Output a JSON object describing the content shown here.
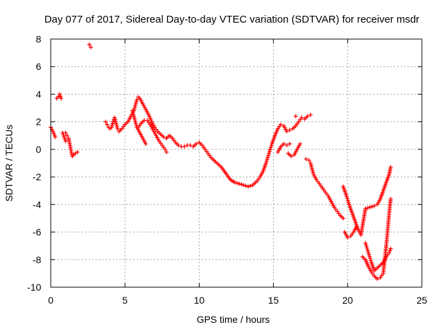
{
  "chart_data": {
    "type": "scatter",
    "title": "Day 077 of 2017, Sidereal Day-to-day VTEC variation (SDTVAR) for receiver msdr",
    "xlabel": "GPS time / hours",
    "ylabel": "SDTVAR / TECUs",
    "xlim": [
      0,
      25
    ],
    "ylim": [
      -10,
      8
    ],
    "xticks": [
      0,
      5,
      10,
      15,
      20,
      25
    ],
    "yticks": [
      -10,
      -8,
      -6,
      -4,
      -2,
      0,
      2,
      4,
      6,
      8
    ],
    "grid": true,
    "marker": "+",
    "series_color": "#ff0000",
    "series": [
      {
        "name": "upper-track",
        "points": [
          [
            0.0,
            1.6
          ],
          [
            0.15,
            1.3
          ],
          [
            0.3,
            0.9
          ],
          [
            0.4,
            3.7
          ],
          [
            0.5,
            3.8
          ],
          [
            0.6,
            4.0
          ],
          [
            0.7,
            3.7
          ],
          [
            0.8,
            1.2
          ],
          [
            0.9,
            0.9
          ],
          [
            1.0,
            0.6
          ],
          [
            1.0,
            1.2
          ],
          [
            1.1,
            1.0
          ],
          [
            1.2,
            0.8
          ],
          [
            1.45,
            -0.5
          ],
          [
            1.55,
            -0.4
          ],
          [
            1.65,
            -0.3
          ],
          [
            1.8,
            -0.2
          ],
          [
            2.6,
            7.6
          ],
          [
            2.7,
            7.4
          ],
          [
            3.7,
            2.0
          ],
          [
            3.8,
            1.8
          ],
          [
            3.9,
            1.6
          ],
          [
            4.0,
            1.5
          ],
          [
            4.1,
            1.6
          ],
          [
            4.2,
            2.0
          ],
          [
            4.3,
            2.3
          ],
          [
            4.5,
            1.5
          ],
          [
            4.6,
            1.3
          ],
          [
            4.8,
            1.5
          ],
          [
            5.0,
            1.8
          ],
          [
            5.2,
            2.0
          ],
          [
            5.4,
            2.4
          ],
          [
            5.6,
            2.8
          ],
          [
            5.8,
            3.6
          ],
          [
            5.9,
            3.8
          ],
          [
            6.0,
            3.7
          ],
          [
            6.2,
            3.3
          ],
          [
            6.4,
            2.9
          ],
          [
            6.6,
            2.5
          ],
          [
            6.8,
            2.0
          ],
          [
            7.0,
            1.6
          ],
          [
            7.2,
            1.3
          ],
          [
            7.4,
            1.1
          ],
          [
            7.6,
            0.9
          ],
          [
            7.8,
            0.8
          ],
          [
            8.0,
            1.0
          ],
          [
            8.2,
            0.8
          ],
          [
            8.4,
            0.5
          ],
          [
            8.6,
            0.3
          ],
          [
            8.8,
            0.2
          ],
          [
            9.0,
            0.2
          ],
          [
            9.2,
            0.3
          ],
          [
            9.4,
            0.3
          ],
          [
            9.6,
            0.2
          ],
          [
            9.8,
            0.4
          ],
          [
            10.0,
            0.5
          ],
          [
            10.2,
            0.3
          ],
          [
            10.4,
            0.0
          ],
          [
            10.6,
            -0.3
          ],
          [
            10.8,
            -0.6
          ],
          [
            11.0,
            -0.8
          ],
          [
            11.2,
            -1.0
          ],
          [
            11.4,
            -1.2
          ],
          [
            11.5,
            -1.3
          ],
          [
            12.1,
            -2.2
          ],
          [
            12.4,
            -2.4
          ],
          [
            12.7,
            -2.5
          ],
          [
            13.0,
            -2.6
          ],
          [
            13.3,
            -2.7
          ],
          [
            13.6,
            -2.6
          ],
          [
            13.9,
            -2.3
          ],
          [
            14.1,
            -2.0
          ],
          [
            14.3,
            -1.6
          ],
          [
            14.5,
            -1.0
          ],
          [
            14.7,
            -0.3
          ],
          [
            14.9,
            0.4
          ],
          [
            15.1,
            1.0
          ],
          [
            15.3,
            1.5
          ],
          [
            15.5,
            1.8
          ],
          [
            15.7,
            1.7
          ],
          [
            15.9,
            1.3
          ],
          [
            16.1,
            1.4
          ],
          [
            16.3,
            1.5
          ],
          [
            16.5,
            1.7
          ],
          [
            16.7,
            2.0
          ],
          [
            16.9,
            2.3
          ],
          [
            17.1,
            2.2
          ],
          [
            17.3,
            2.4
          ],
          [
            17.5,
            2.5
          ],
          [
            16.5,
            2.4
          ],
          [
            17.2,
            -0.7
          ],
          [
            17.4,
            -0.8
          ],
          [
            17.5,
            -1.0
          ],
          [
            17.6,
            -1.4
          ],
          [
            17.7,
            -1.8
          ],
          [
            17.9,
            -2.2
          ],
          [
            18.1,
            -2.5
          ],
          [
            18.3,
            -2.8
          ],
          [
            18.5,
            -3.1
          ],
          [
            18.7,
            -3.4
          ],
          [
            18.9,
            -3.8
          ],
          [
            19.1,
            -4.2
          ],
          [
            19.3,
            -4.5
          ],
          [
            19.5,
            -4.8
          ],
          [
            19.7,
            -5.0
          ],
          [
            19.7,
            -2.7
          ],
          [
            19.9,
            -3.3
          ],
          [
            20.1,
            -4.0
          ],
          [
            20.3,
            -4.6
          ],
          [
            20.5,
            -5.2
          ],
          [
            20.7,
            -5.8
          ],
          [
            20.9,
            -6.2
          ],
          [
            21.2,
            -4.3
          ],
          [
            21.5,
            -4.2
          ],
          [
            21.8,
            -4.1
          ],
          [
            22.0,
            -4.0
          ],
          [
            22.2,
            -3.6
          ],
          [
            22.4,
            -3.0
          ],
          [
            22.6,
            -2.4
          ],
          [
            22.8,
            -1.8
          ],
          [
            22.9,
            -1.3
          ]
        ]
      },
      {
        "name": "lower-track",
        "points": [
          [
            5.5,
            2.8
          ],
          [
            5.6,
            2.4
          ],
          [
            5.7,
            2.0
          ],
          [
            5.8,
            1.6
          ],
          [
            6.0,
            1.2
          ],
          [
            6.2,
            0.8
          ],
          [
            6.4,
            0.4
          ],
          [
            5.9,
            1.6
          ],
          [
            6.1,
            1.9
          ],
          [
            6.3,
            2.1
          ],
          [
            6.5,
            2.1
          ],
          [
            6.7,
            1.8
          ],
          [
            6.9,
            1.4
          ],
          [
            7.1,
            1.0
          ],
          [
            7.3,
            0.6
          ],
          [
            7.5,
            0.3
          ],
          [
            7.7,
            0.0
          ],
          [
            7.8,
            -0.2
          ],
          [
            15.3,
            -0.2
          ],
          [
            15.5,
            0.2
          ],
          [
            15.7,
            0.4
          ],
          [
            15.9,
            0.3
          ],
          [
            16.1,
            0.4
          ],
          [
            16.0,
            -0.3
          ],
          [
            16.2,
            -0.5
          ],
          [
            16.4,
            -0.4
          ],
          [
            16.6,
            0.0
          ],
          [
            16.8,
            0.4
          ],
          [
            19.8,
            -6.0
          ],
          [
            20.0,
            -6.4
          ],
          [
            20.2,
            -6.3
          ],
          [
            20.4,
            -6.0
          ],
          [
            20.6,
            -5.6
          ],
          [
            21.0,
            -7.8
          ],
          [
            21.2,
            -8.0
          ],
          [
            21.4,
            -8.5
          ],
          [
            21.6,
            -8.9
          ],
          [
            21.8,
            -9.2
          ],
          [
            22.0,
            -9.4
          ],
          [
            22.2,
            -9.3
          ],
          [
            22.4,
            -9.0
          ],
          [
            22.5,
            -8.0
          ],
          [
            22.6,
            -7.0
          ],
          [
            22.7,
            -5.8
          ],
          [
            22.8,
            -4.6
          ],
          [
            22.9,
            -3.6
          ],
          [
            21.2,
            -6.8
          ],
          [
            21.4,
            -7.5
          ],
          [
            21.6,
            -8.2
          ],
          [
            21.8,
            -8.8
          ],
          [
            22.0,
            -8.6
          ],
          [
            22.4,
            -8.2
          ],
          [
            22.6,
            -7.8
          ],
          [
            22.8,
            -7.5
          ],
          [
            22.9,
            -7.2
          ]
        ]
      }
    ]
  }
}
